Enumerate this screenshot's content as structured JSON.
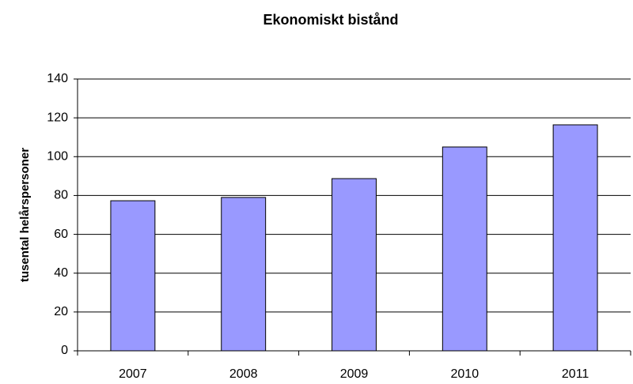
{
  "chart_data": {
    "type": "bar",
    "title": "Ekonomiskt bistånd",
    "y_label": "tusental helårspersoner",
    "categories": [
      "2007",
      "2008",
      "2009",
      "2010",
      "2011"
    ],
    "values": [
      77.3,
      79,
      88.7,
      105,
      116.4
    ],
    "color": "#9999ff",
    "ylim": [
      0,
      140
    ],
    "yticks": [
      0,
      20,
      40,
      60,
      80,
      100,
      120,
      140
    ],
    "grid": true
  }
}
